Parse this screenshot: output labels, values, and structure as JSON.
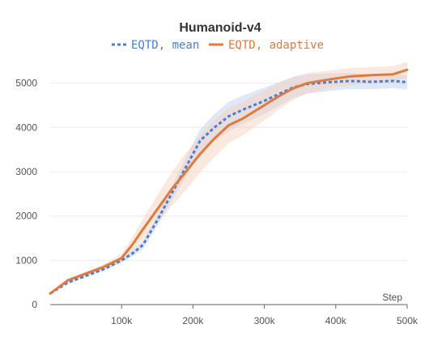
{
  "chart_data": {
    "type": "line",
    "title": "Humanoid-v4",
    "xlabel": "Step",
    "ylabel": "",
    "xlim": [
      0,
      500000
    ],
    "ylim": [
      0,
      5450
    ],
    "x_ticks": [
      100000,
      200000,
      300000,
      400000,
      500000
    ],
    "x_tick_labels": [
      "100k",
      "200k",
      "300k",
      "400k",
      "500k"
    ],
    "y_ticks": [
      0,
      1000,
      2000,
      3000,
      4000,
      5000
    ],
    "y_tick_labels": [
      "0",
      "1000",
      "2000",
      "3000",
      "4000",
      "5000"
    ],
    "grid": "horizontal",
    "legend_position": "top-center",
    "series": [
      {
        "name": "EQTD, mean",
        "color": "#4a7fd6",
        "style": "dotted",
        "band_color": "#b9cdea",
        "band_half_width": [
          0,
          20,
          30,
          40,
          50,
          70,
          90,
          120,
          160,
          220,
          260,
          300,
          330,
          320,
          300,
          270,
          240,
          220,
          200,
          180,
          170,
          160,
          160
        ],
        "x": [
          0,
          25000,
          50000,
          75000,
          100000,
          115000,
          130000,
          150000,
          170000,
          190000,
          210000,
          230000,
          250000,
          270000,
          300000,
          320000,
          340000,
          360000,
          390000,
          420000,
          450000,
          480000,
          500000
        ],
        "y": [
          250,
          500,
          650,
          800,
          1000,
          1150,
          1350,
          1900,
          2500,
          3100,
          3700,
          4000,
          4250,
          4400,
          4600,
          4750,
          4900,
          4980,
          5020,
          5050,
          5030,
          5050,
          5020
        ]
      },
      {
        "name": "EQTD, adaptive",
        "color": "#e07a3d",
        "style": "solid",
        "band_color": "#f7cfb8",
        "band_half_width": [
          0,
          30,
          40,
          60,
          100,
          160,
          240,
          320,
          380,
          420,
          420,
          420,
          400,
          380,
          340,
          300,
          260,
          230,
          200,
          190,
          180,
          180,
          180
        ],
        "x": [
          0,
          25000,
          50000,
          75000,
          100000,
          115000,
          130000,
          150000,
          170000,
          190000,
          210000,
          230000,
          250000,
          270000,
          300000,
          320000,
          340000,
          360000,
          390000,
          420000,
          450000,
          480000,
          500000
        ],
        "y": [
          250,
          550,
          700,
          850,
          1050,
          1350,
          1700,
          2150,
          2600,
          3000,
          3400,
          3750,
          4050,
          4200,
          4500,
          4700,
          4880,
          5000,
          5080,
          5150,
          5180,
          5200,
          5300
        ]
      }
    ]
  }
}
